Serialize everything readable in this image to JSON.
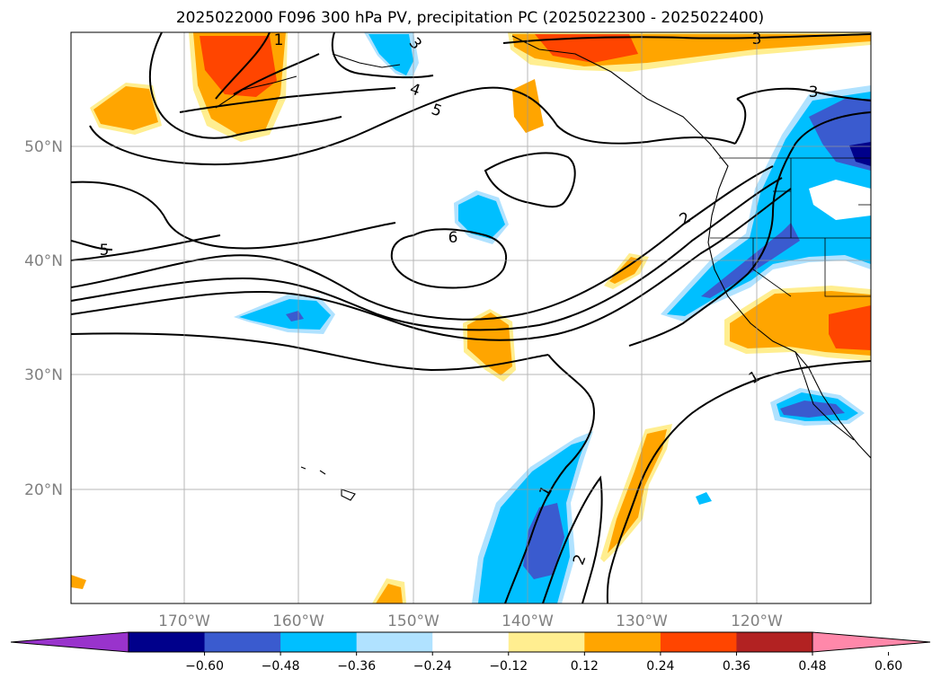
{
  "title": "2025022000 F096 300 hPa PV, precipitation PC (2025022300 - 2025022400)",
  "map": {
    "lon_ticks": [
      "170°W",
      "160°W",
      "150°W",
      "140°W",
      "130°W",
      "120°W"
    ],
    "lat_ticks": [
      "50°N",
      "40°N",
      "30°N",
      "20°N"
    ],
    "grid": true
  },
  "pv_contour_labels": [
    "1",
    "1",
    "1",
    "2",
    "2",
    "3",
    "3",
    "3",
    "4",
    "5",
    "5",
    "6"
  ],
  "colorbar": {
    "ticks": [
      "−0.60",
      "−0.48",
      "−0.36",
      "−0.24",
      "−0.12",
      "0.12",
      "0.24",
      "0.36",
      "0.48",
      "0.60"
    ],
    "colors": [
      "#9933cc",
      "#00008b",
      "#3a5bcf",
      "#00bfff",
      "#b0e2ff",
      "#ffffff",
      "#ffee90",
      "#ffa500",
      "#ff4500",
      "#b22222",
      "#ff88aa"
    ]
  },
  "chart_data": {
    "type": "heatmap",
    "title": "2025022000 F096 300 hPa PV, precipitation PC (2025022300 - 2025022400)",
    "variables": [
      "300 hPa PV (contours)",
      "precipitation PC (shaded)"
    ],
    "lon_range": [
      "180°W",
      "110°W"
    ],
    "lat_range": [
      "10°N",
      "60°N"
    ],
    "colorbar_levels": [
      -0.6,
      -0.48,
      -0.36,
      -0.24,
      -0.12,
      0.12,
      0.24,
      0.36,
      0.48,
      0.6
    ],
    "pv_contour_levels": [
      1,
      2,
      3,
      4,
      5,
      6
    ],
    "grid": true
  }
}
